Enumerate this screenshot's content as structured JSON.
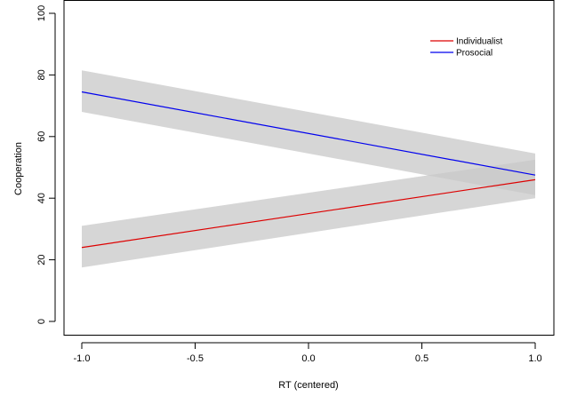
{
  "chart_data": {
    "type": "line",
    "title": "",
    "xlabel": "RT (centered)",
    "ylabel": "Cooperation",
    "xlim": [
      -1.0,
      1.0
    ],
    "ylim": [
      0,
      100
    ],
    "x_ticks": [
      -1.0,
      -0.5,
      0.0,
      0.5,
      1.0
    ],
    "x_tick_labels": [
      "-1.0",
      "-0.5",
      "0.0",
      "0.5",
      "1.0"
    ],
    "y_ticks": [
      0,
      20,
      40,
      60,
      80,
      100
    ],
    "y_tick_labels": [
      "0",
      "20",
      "40",
      "60",
      "80",
      "100"
    ],
    "grid": false,
    "legend_position": "top-right",
    "confidence_band_color": "#c8c8c8",
    "series": [
      {
        "name": "Individualist",
        "color": "#dd0000",
        "x": [
          -1.0,
          1.0
        ],
        "y": [
          24.0,
          46.0
        ],
        "ci_lower": [
          17.5,
          40.0
        ],
        "ci_upper": [
          31.0,
          52.5
        ]
      },
      {
        "name": "Prosocial",
        "color": "#0000ee",
        "x": [
          -1.0,
          1.0
        ],
        "y": [
          74.5,
          47.5
        ],
        "ci_lower": [
          68.0,
          41.0
        ],
        "ci_upper": [
          81.5,
          54.5
        ]
      }
    ]
  }
}
